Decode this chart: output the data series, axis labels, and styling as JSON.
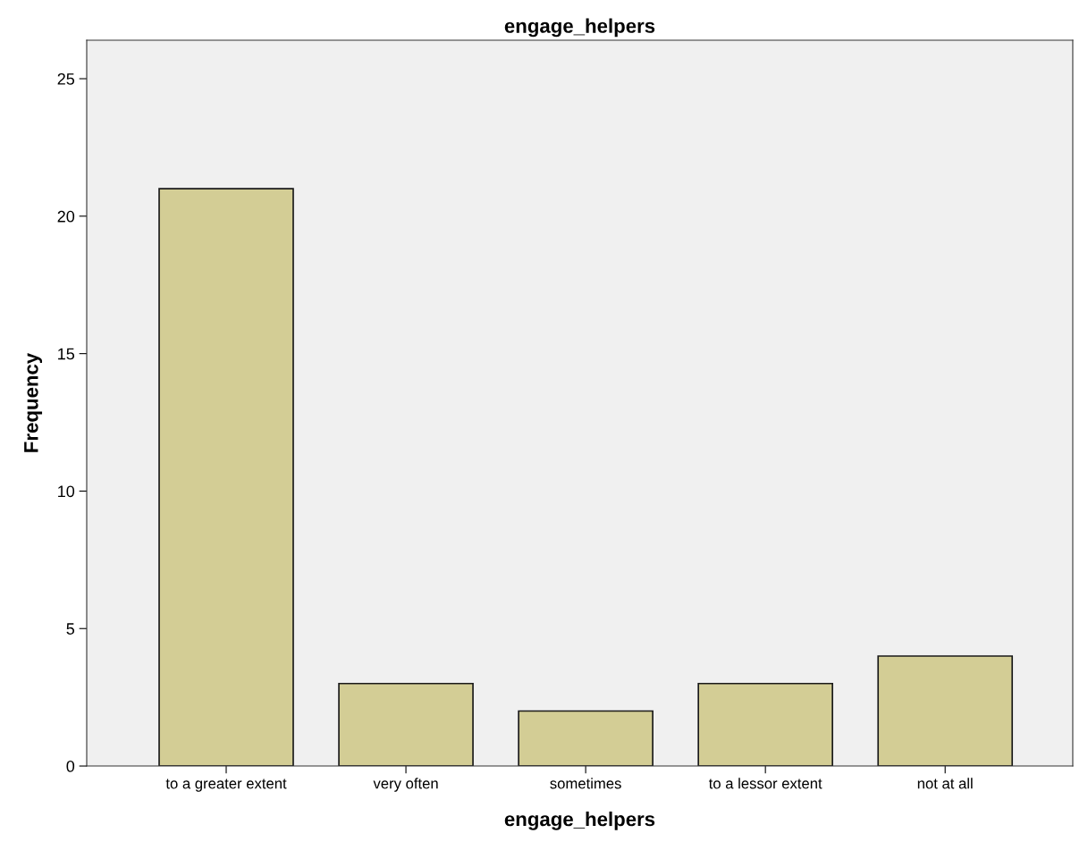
{
  "chart_data": {
    "type": "bar",
    "title": "engage_helpers",
    "xlabel": "engage_helpers",
    "ylabel": "Frequency",
    "categories": [
      "to a greater extent",
      "very often",
      "sometimes",
      "to a lessor extent",
      "not at all"
    ],
    "values": [
      21,
      3,
      2,
      3,
      4
    ],
    "color": "#d3cd95",
    "ylim": [
      0,
      26.4
    ],
    "yticks": [
      0,
      5,
      10,
      15,
      20,
      25
    ],
    "grid": false,
    "legend": false
  }
}
